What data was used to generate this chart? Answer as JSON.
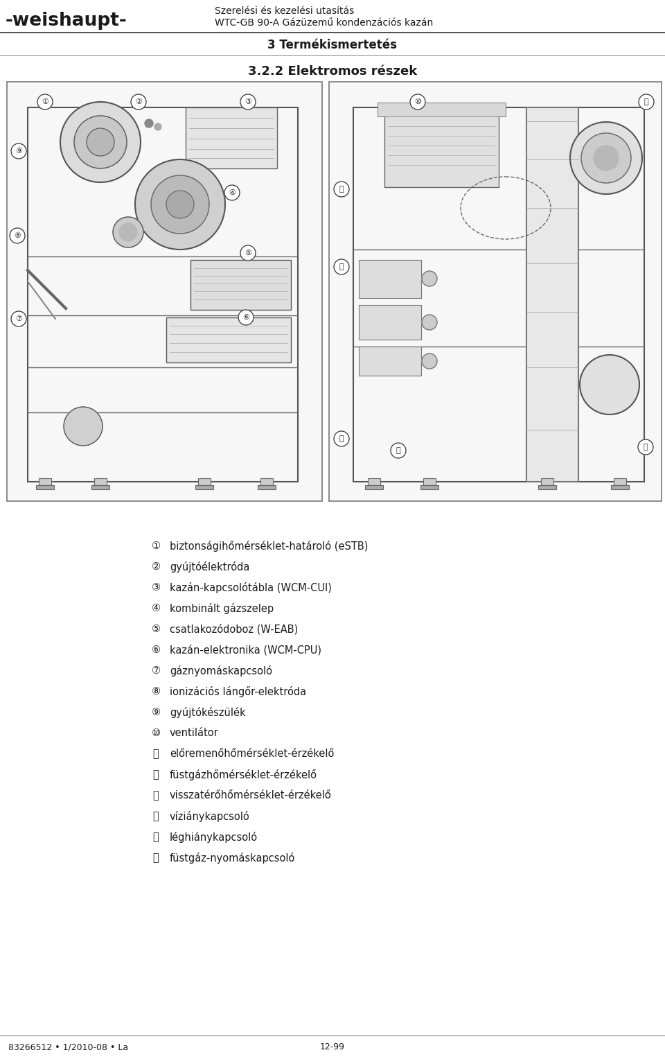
{
  "title_line1": "Szerelési és kezelési utasítás",
  "title_line2": "WTC-GB 90-A Gázüzemű kondenzációs kazán",
  "section_title": "3 Termékismertetés",
  "subsection_title": "3.2.2 Elektromos részek",
  "logo_text": "-weishaupt-",
  "footer_left": "83266512 • 1/2010-08 • La",
  "footer_right": "12-99",
  "items": [
    {
      "num": "①",
      "text": "biztonságihőmérséklet-határoló (eSTB)"
    },
    {
      "num": "②",
      "text": "gyújtóélektróda"
    },
    {
      "num": "③",
      "text": "kazán-kapcsolótábla (WCM-CUI)"
    },
    {
      "num": "④",
      "text": "kombinált gázszelep"
    },
    {
      "num": "⑤",
      "text": "csatlakozódoboz (W-EAB)"
    },
    {
      "num": "⑥",
      "text": "kazán-elektronika (WCM-CPU)"
    },
    {
      "num": "⑦",
      "text": "gáznyomáskapcsoló"
    },
    {
      "num": "⑧",
      "text": "ionizációs lángőr-elektróda"
    },
    {
      "num": "⑨",
      "text": "gyújtókészülék"
    },
    {
      "num": "⑩",
      "text": "ventilátor"
    },
    {
      "num": "⑪",
      "text": "előremenőhőmérséklet-érzékelő"
    },
    {
      "num": "⑫",
      "text": "füstgázhőmérséklet-érzékelő"
    },
    {
      "num": "⑬",
      "text": "visszatérőhőmérséklet-érzékelő"
    },
    {
      "num": "⑭",
      "text": "víziánykapcsoló"
    },
    {
      "num": "⑮",
      "text": "léghiánykapcsoló"
    },
    {
      "num": "⑯",
      "text": "füstgáz-nyomáskapcsoló"
    }
  ],
  "bg_color": "#ffffff",
  "text_color": "#1a1a1a",
  "line_color": "#555555",
  "header_line_color": "#333333",
  "diagram_bg": "#f5f5f5",
  "diagram_line": "#666666"
}
